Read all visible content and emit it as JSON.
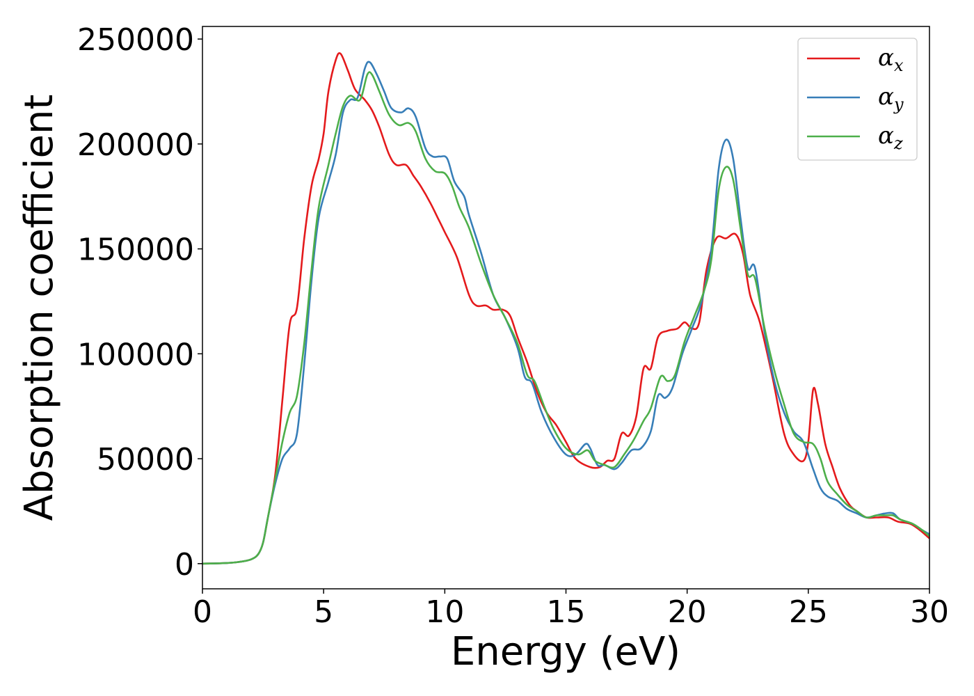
{
  "chart_data": {
    "type": "line",
    "title": "",
    "xlabel": "Energy (eV)",
    "ylabel": "Absorption coefficient",
    "xlim": [
      0,
      30
    ],
    "ylim": [
      -12000,
      256000
    ],
    "xticks": [
      0,
      5,
      10,
      15,
      20,
      25,
      30
    ],
    "yticks": [
      0,
      50000,
      100000,
      150000,
      200000,
      250000
    ],
    "xtick_labels": [
      "0",
      "5",
      "10",
      "15",
      "20",
      "25",
      "30"
    ],
    "ytick_labels": [
      "0",
      "50000",
      "100000",
      "150000",
      "200000",
      "250000"
    ],
    "grid": false,
    "legend_position": "top-right",
    "series": [
      {
        "name": "α",
        "name_subscript": "x",
        "color": "#e41a1c",
        "points": [
          [
            0,
            0
          ],
          [
            1,
            300
          ],
          [
            1.5,
            800
          ],
          [
            2,
            2000
          ],
          [
            2.3,
            4500
          ],
          [
            2.5,
            10000
          ],
          [
            2.7,
            22000
          ],
          [
            3,
            42000
          ],
          [
            3.3,
            78000
          ],
          [
            3.6,
            114000
          ],
          [
            3.9,
            122000
          ],
          [
            4.2,
            155000
          ],
          [
            4.5,
            180000
          ],
          [
            4.8,
            193000
          ],
          [
            5,
            205000
          ],
          [
            5.2,
            225000
          ],
          [
            5.5,
            240000
          ],
          [
            5.7,
            243000
          ],
          [
            6,
            235000
          ],
          [
            6.3,
            226000
          ],
          [
            6.7,
            221000
          ],
          [
            7,
            216000
          ],
          [
            7.3,
            208000
          ],
          [
            7.7,
            195000
          ],
          [
            8,
            190000
          ],
          [
            8.4,
            190000
          ],
          [
            8.7,
            185000
          ],
          [
            9,
            180000
          ],
          [
            9.4,
            172000
          ],
          [
            9.7,
            165000
          ],
          [
            10,
            158000
          ],
          [
            10.5,
            146000
          ],
          [
            11,
            128000
          ],
          [
            11.3,
            123000
          ],
          [
            11.7,
            123000
          ],
          [
            12,
            121000
          ],
          [
            12.4,
            121000
          ],
          [
            12.7,
            118000
          ],
          [
            13,
            108000
          ],
          [
            13.4,
            96000
          ],
          [
            13.8,
            82000
          ],
          [
            14.2,
            72000
          ],
          [
            14.6,
            66000
          ],
          [
            15,
            58000
          ],
          [
            15.4,
            50000
          ],
          [
            16,
            46000
          ],
          [
            16.4,
            46000
          ],
          [
            16.7,
            49000
          ],
          [
            17,
            50000
          ],
          [
            17.3,
            62000
          ],
          [
            17.6,
            61000
          ],
          [
            17.9,
            70000
          ],
          [
            18.2,
            93000
          ],
          [
            18.5,
            93000
          ],
          [
            18.8,
            108000
          ],
          [
            19.2,
            111000
          ],
          [
            19.6,
            112000
          ],
          [
            19.9,
            115000
          ],
          [
            20.2,
            112000
          ],
          [
            20.5,
            115000
          ],
          [
            20.8,
            140000
          ],
          [
            21.2,
            155000
          ],
          [
            21.6,
            155000
          ],
          [
            22,
            157000
          ],
          [
            22.3,
            148000
          ],
          [
            22.6,
            128000
          ],
          [
            23,
            115000
          ],
          [
            23.5,
            90000
          ],
          [
            24,
            62000
          ],
          [
            24.4,
            52000
          ],
          [
            24.8,
            49000
          ],
          [
            25,
            58000
          ],
          [
            25.2,
            83000
          ],
          [
            25.4,
            76000
          ],
          [
            25.7,
            57000
          ],
          [
            26,
            46000
          ],
          [
            26.3,
            36000
          ],
          [
            26.7,
            28000
          ],
          [
            27,
            25000
          ],
          [
            27.4,
            22000
          ],
          [
            27.8,
            22000
          ],
          [
            28.3,
            22000
          ],
          [
            28.7,
            20000
          ],
          [
            29.2,
            19000
          ],
          [
            29.6,
            16000
          ],
          [
            30,
            12000
          ]
        ]
      },
      {
        "name": "α",
        "name_subscript": "y",
        "color": "#377eb8",
        "points": [
          [
            0,
            0
          ],
          [
            1,
            300
          ],
          [
            1.5,
            800
          ],
          [
            2,
            2000
          ],
          [
            2.3,
            4500
          ],
          [
            2.5,
            10000
          ],
          [
            2.7,
            22000
          ],
          [
            3,
            38000
          ],
          [
            3.3,
            50000
          ],
          [
            3.6,
            55000
          ],
          [
            3.9,
            62000
          ],
          [
            4.2,
            95000
          ],
          [
            4.5,
            135000
          ],
          [
            4.8,
            165000
          ],
          [
            5.2,
            182000
          ],
          [
            5.5,
            195000
          ],
          [
            5.8,
            215000
          ],
          [
            6.1,
            221000
          ],
          [
            6.4,
            222000
          ],
          [
            6.7,
            236000
          ],
          [
            6.9,
            239000
          ],
          [
            7.2,
            233000
          ],
          [
            7.5,
            225000
          ],
          [
            7.8,
            217000
          ],
          [
            8.2,
            215000
          ],
          [
            8.5,
            217000
          ],
          [
            8.8,
            213000
          ],
          [
            9.2,
            198000
          ],
          [
            9.5,
            194000
          ],
          [
            9.8,
            194000
          ],
          [
            10.1,
            193000
          ],
          [
            10.4,
            182000
          ],
          [
            10.8,
            175000
          ],
          [
            11,
            166000
          ],
          [
            11.5,
            148000
          ],
          [
            12,
            128000
          ],
          [
            12.5,
            117000
          ],
          [
            13,
            103000
          ],
          [
            13.3,
            89000
          ],
          [
            13.6,
            86000
          ],
          [
            14,
            72000
          ],
          [
            14.5,
            60000
          ],
          [
            15,
            52000
          ],
          [
            15.4,
            52000
          ],
          [
            15.8,
            57000
          ],
          [
            16,
            55000
          ],
          [
            16.3,
            47000
          ],
          [
            16.6,
            47000
          ],
          [
            17,
            45000
          ],
          [
            17.3,
            48000
          ],
          [
            17.7,
            54000
          ],
          [
            18.1,
            55000
          ],
          [
            18.5,
            63000
          ],
          [
            18.8,
            80000
          ],
          [
            19.1,
            79000
          ],
          [
            19.4,
            84000
          ],
          [
            19.8,
            100000
          ],
          [
            20.2,
            112000
          ],
          [
            20.6,
            125000
          ],
          [
            21,
            150000
          ],
          [
            21.3,
            188000
          ],
          [
            21.6,
            202000
          ],
          [
            21.9,
            193000
          ],
          [
            22.2,
            165000
          ],
          [
            22.5,
            141000
          ],
          [
            22.8,
            141000
          ],
          [
            23.2,
            110000
          ],
          [
            23.6,
            87000
          ],
          [
            24,
            72000
          ],
          [
            24.4,
            63000
          ],
          [
            24.8,
            58000
          ],
          [
            25.2,
            45000
          ],
          [
            25.5,
            36000
          ],
          [
            25.8,
            32000
          ],
          [
            26.2,
            30000
          ],
          [
            26.6,
            26000
          ],
          [
            27,
            24000
          ],
          [
            27.4,
            22000
          ],
          [
            27.8,
            23000
          ],
          [
            28.2,
            24000
          ],
          [
            28.5,
            24000
          ],
          [
            28.8,
            21000
          ],
          [
            29.3,
            19000
          ],
          [
            29.7,
            16000
          ],
          [
            30,
            14000
          ]
        ]
      },
      {
        "name": "α",
        "name_subscript": "z",
        "color": "#4daf4a",
        "points": [
          [
            0,
            0
          ],
          [
            1,
            300
          ],
          [
            1.5,
            800
          ],
          [
            2,
            2000
          ],
          [
            2.3,
            4500
          ],
          [
            2.5,
            10000
          ],
          [
            2.7,
            22000
          ],
          [
            3,
            40000
          ],
          [
            3.3,
            58000
          ],
          [
            3.6,
            72000
          ],
          [
            3.9,
            80000
          ],
          [
            4.2,
            105000
          ],
          [
            4.5,
            140000
          ],
          [
            4.8,
            170000
          ],
          [
            5.2,
            190000
          ],
          [
            5.5,
            205000
          ],
          [
            5.8,
            218000
          ],
          [
            6.1,
            223000
          ],
          [
            6.5,
            221000
          ],
          [
            6.8,
            233000
          ],
          [
            7,
            233000
          ],
          [
            7.3,
            225000
          ],
          [
            7.7,
            214000
          ],
          [
            8.1,
            209000
          ],
          [
            8.5,
            210000
          ],
          [
            8.8,
            206000
          ],
          [
            9.2,
            193000
          ],
          [
            9.6,
            187000
          ],
          [
            10,
            186000
          ],
          [
            10.3,
            180000
          ],
          [
            10.6,
            170000
          ],
          [
            11,
            160000
          ],
          [
            11.5,
            143000
          ],
          [
            12,
            128000
          ],
          [
            12.5,
            117000
          ],
          [
            13,
            105000
          ],
          [
            13.4,
            90000
          ],
          [
            13.7,
            87000
          ],
          [
            14.1,
            75000
          ],
          [
            14.5,
            64000
          ],
          [
            15,
            55000
          ],
          [
            15.5,
            52000
          ],
          [
            15.9,
            54000
          ],
          [
            16.2,
            49000
          ],
          [
            16.6,
            47000
          ],
          [
            17,
            46000
          ],
          [
            17.4,
            52000
          ],
          [
            17.8,
            59000
          ],
          [
            18.2,
            68000
          ],
          [
            18.5,
            74000
          ],
          [
            18.9,
            89000
          ],
          [
            19.2,
            87000
          ],
          [
            19.5,
            90000
          ],
          [
            19.9,
            106000
          ],
          [
            20.3,
            118000
          ],
          [
            20.7,
            130000
          ],
          [
            21,
            145000
          ],
          [
            21.3,
            178000
          ],
          [
            21.6,
            189000
          ],
          [
            21.9,
            183000
          ],
          [
            22.2,
            160000
          ],
          [
            22.5,
            138000
          ],
          [
            22.8,
            136000
          ],
          [
            23.2,
            112000
          ],
          [
            23.6,
            92000
          ],
          [
            24,
            76000
          ],
          [
            24.4,
            62000
          ],
          [
            24.8,
            58000
          ],
          [
            25.2,
            57000
          ],
          [
            25.5,
            50000
          ],
          [
            25.8,
            39000
          ],
          [
            26.2,
            33000
          ],
          [
            26.6,
            28000
          ],
          [
            27,
            25000
          ],
          [
            27.4,
            22000
          ],
          [
            27.8,
            23000
          ],
          [
            28.2,
            23000
          ],
          [
            28.5,
            23000
          ],
          [
            28.8,
            21000
          ],
          [
            29.3,
            19000
          ],
          [
            29.7,
            16000
          ],
          [
            30,
            13000
          ]
        ]
      }
    ]
  }
}
